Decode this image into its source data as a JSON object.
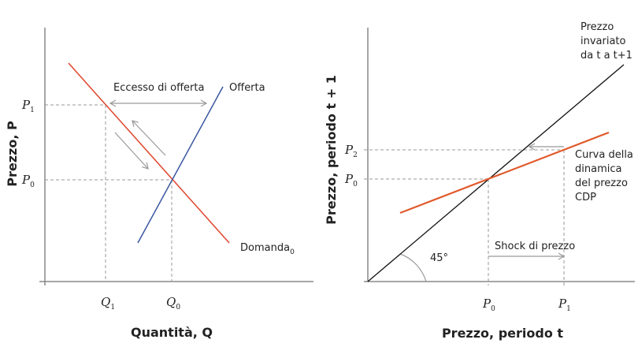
{
  "left": {
    "y_axis_title": "Prezzo, P",
    "x_axis_title": "Quantità, Q",
    "y_ticks": [
      {
        "base": "P",
        "sub": "1"
      },
      {
        "base": "P",
        "sub": "0"
      }
    ],
    "x_ticks": [
      {
        "base": "Q",
        "sub": "1"
      },
      {
        "base": "Q",
        "sub": "0"
      }
    ],
    "supply_label": "Offerta",
    "demand_label": "Domanda",
    "demand_sub": "0",
    "excess_label": "Eccesso di offerta",
    "colors": {
      "demand": "#e0452b",
      "supply": "#3a56a0",
      "arrows": "#999999"
    }
  },
  "right": {
    "y_axis_title": "Prezzo, periodo t + 1",
    "x_axis_title": "Prezzo, periodo t",
    "y_ticks": [
      {
        "base": "P",
        "sub": "2"
      },
      {
        "base": "P",
        "sub": "0"
      }
    ],
    "x_ticks": [
      {
        "base": "P",
        "sub": "0"
      },
      {
        "base": "P",
        "sub": "1"
      }
    ],
    "line45_label": [
      "Prezzo",
      "invariato",
      "da t a t+1"
    ],
    "cdp_label": [
      "Curva della",
      "dinamica",
      "del prezzo",
      "CDP"
    ],
    "shock_label": "Shock di prezzo",
    "angle_label": "45°",
    "colors": {
      "cdp": "#e05a2b",
      "line45": "#111111"
    }
  }
}
